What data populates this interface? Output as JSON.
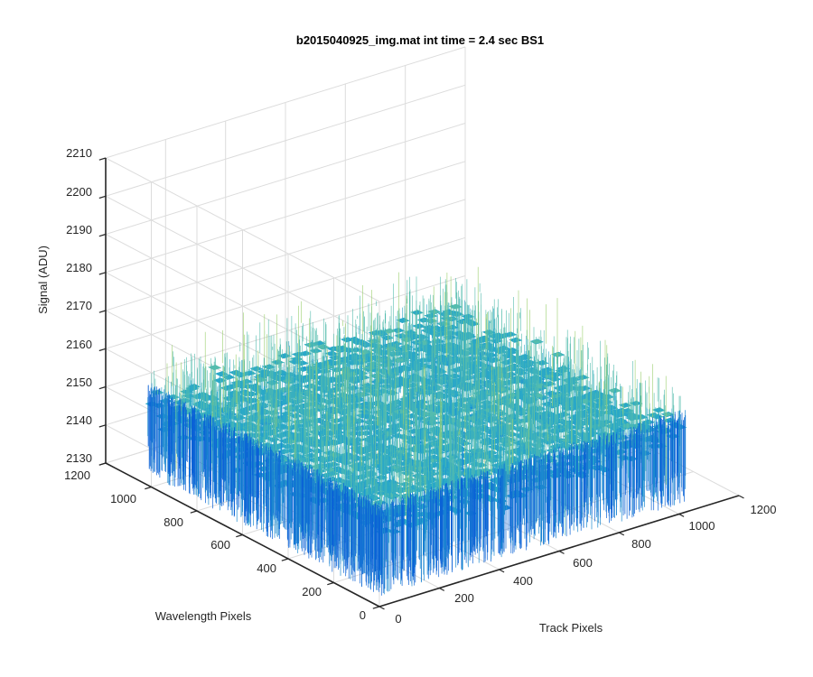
{
  "window": {
    "background": "#ffffff"
  },
  "chart_data": {
    "type": "surface",
    "title": "b2015040925_img.mat int time = 2.4 sec   BS1",
    "xlabel": "Track Pixels",
    "ylabel": "Wavelength Pixels",
    "zlabel": "Signal (ADU)",
    "xlim": [
      0,
      1200
    ],
    "ylim": [
      0,
      1200
    ],
    "zlim": [
      2130,
      2210
    ],
    "xticks": [
      0,
      200,
      400,
      600,
      800,
      1000,
      1200
    ],
    "yticks": [
      0,
      200,
      400,
      600,
      800,
      1000,
      1200
    ],
    "zticks": [
      2130,
      2140,
      2150,
      2160,
      2170,
      2180,
      2190,
      2200,
      2210
    ],
    "x_tick_labels": [
      "0",
      "200",
      "400",
      "600",
      "800",
      "1000",
      "1200"
    ],
    "y_tick_labels": [
      "0",
      "200",
      "400",
      "600",
      "800",
      "1000",
      "1200"
    ],
    "z_tick_labels": [
      "2130",
      "2140",
      "2150",
      "2160",
      "2170",
      "2180",
      "2190",
      "2200",
      "2210"
    ],
    "data_extent": {
      "x": [
        0,
        1024
      ],
      "y": [
        0,
        1024
      ]
    },
    "signal": {
      "mean": 2150,
      "spread": 7
    },
    "colormap": [
      "#0066e0",
      "#1a8fd6",
      "#2aa8c8",
      "#54bcae",
      "#9bcf6e"
    ],
    "grid": true
  }
}
